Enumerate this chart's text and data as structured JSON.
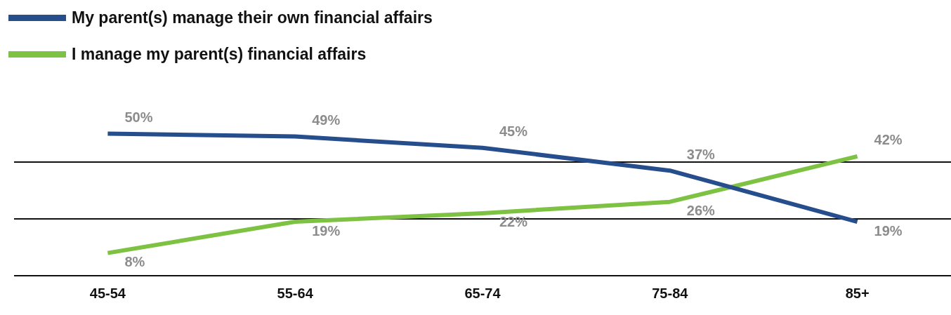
{
  "chart_data": {
    "type": "line",
    "categories": [
      "45-54",
      "55-64",
      "65-74",
      "75-84",
      "85+"
    ],
    "series": [
      {
        "name": "My parent(s) manage their own financial affairs",
        "color": "#264d8c",
        "values": [
          50,
          49,
          45,
          37,
          19
        ],
        "value_labels": [
          "50%",
          "49%",
          "45%",
          "37%",
          "19%"
        ]
      },
      {
        "name": "I manage my parent(s) financial affairs",
        "color": "#7dc242",
        "values": [
          8,
          19,
          22,
          26,
          42
        ],
        "value_labels": [
          "8%",
          "19%",
          "22%",
          "26%",
          "42%"
        ]
      }
    ],
    "ref_lines": [
      {
        "axis": "y",
        "value": 0,
        "color": "#111111"
      },
      {
        "axis": "y",
        "value": 20,
        "color": "#111111"
      },
      {
        "axis": "y",
        "value": 40,
        "color": "#111111"
      }
    ],
    "tick_labels": "x",
    "legend": "top left",
    "marker": "none",
    "line_style": "solid"
  }
}
